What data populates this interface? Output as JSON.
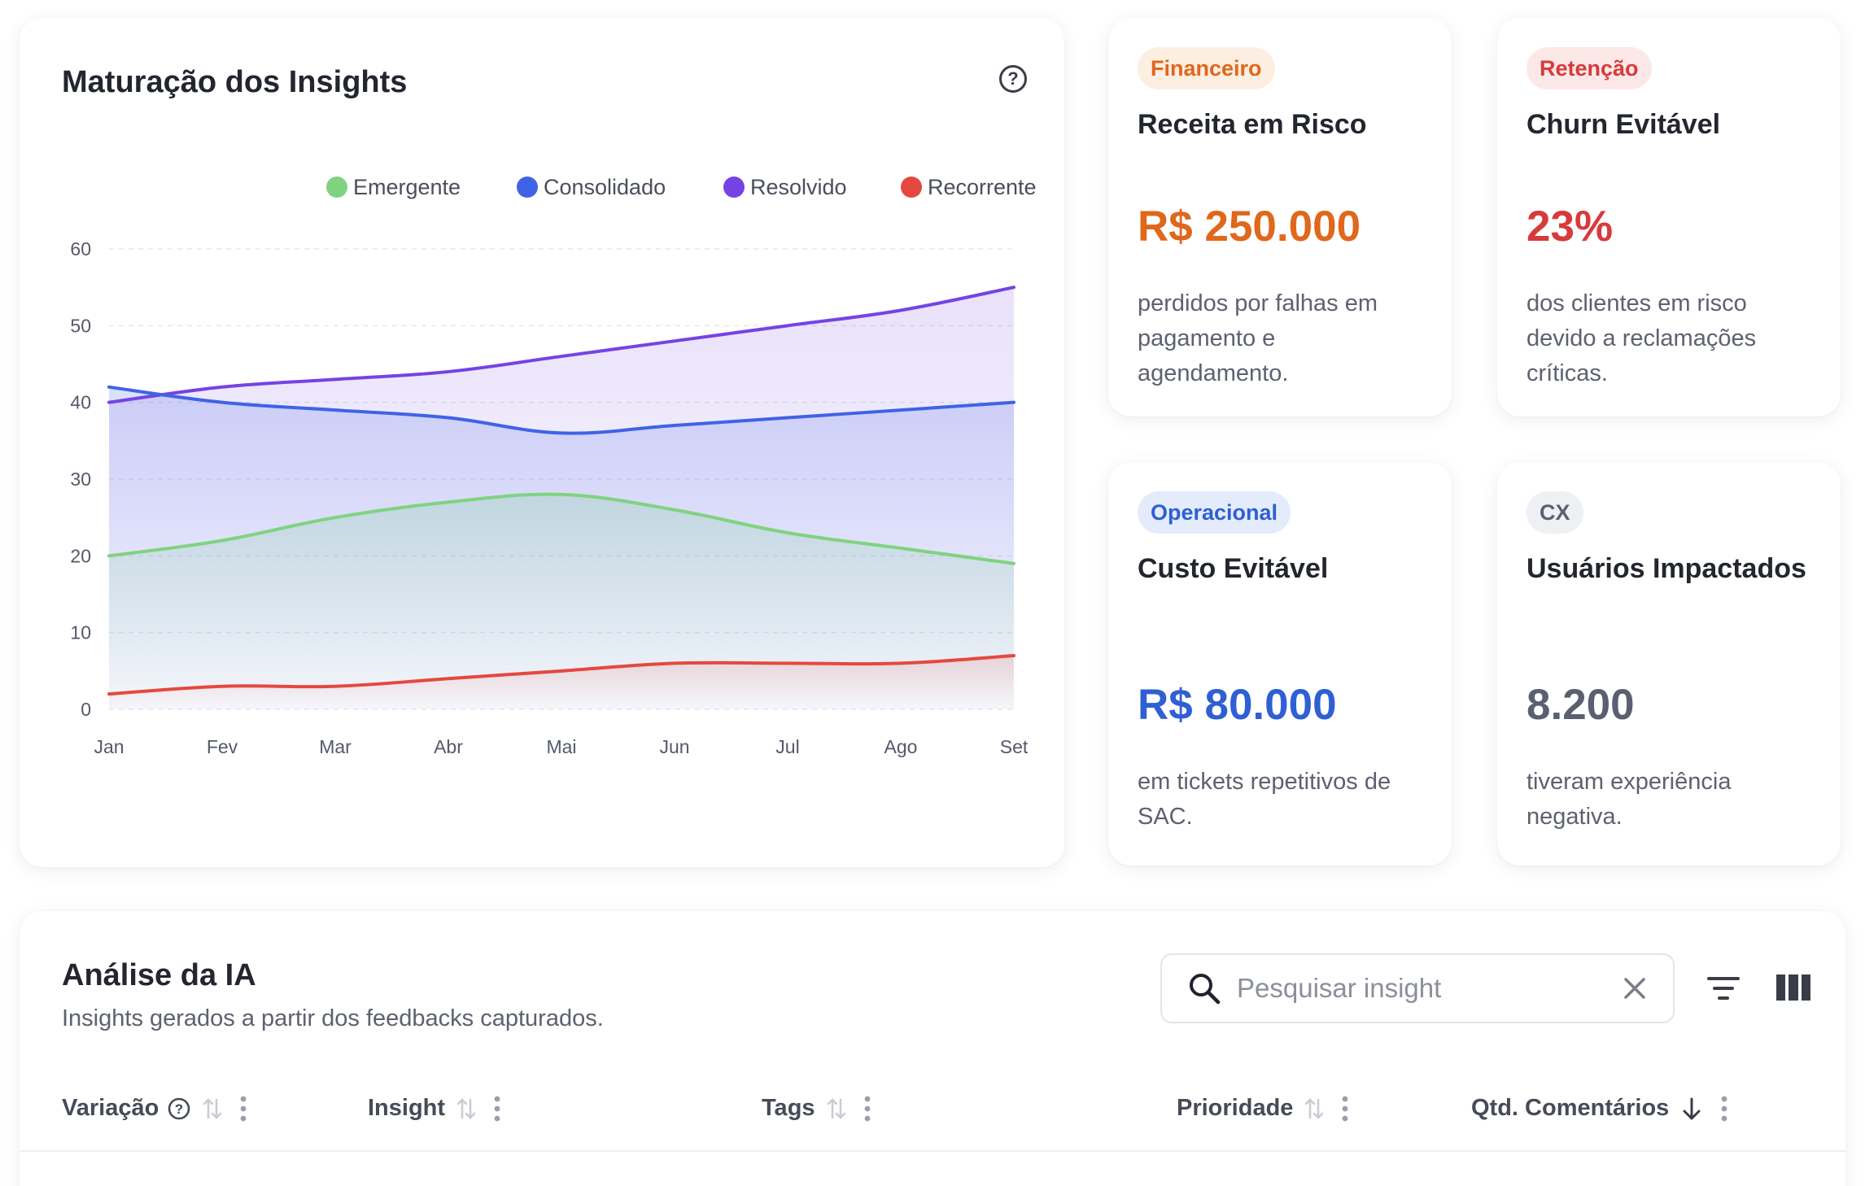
{
  "chart": {
    "title": "Maturação dos Insights",
    "help_icon": "help-circle-icon",
    "help_glyph": "?",
    "legend": [
      {
        "label": "Emergente",
        "color": "#7fd37f"
      },
      {
        "label": "Consolidado",
        "color": "#3f63e6"
      },
      {
        "label": "Resolvido",
        "color": "#7543e3"
      },
      {
        "label": "Recorrente",
        "color": "#e5483f"
      }
    ]
  },
  "chart_data": {
    "type": "area",
    "title": "Maturação dos Insights",
    "x": [
      "Jan",
      "Fev",
      "Mar",
      "Abr",
      "Mai",
      "Jun",
      "Jul",
      "Ago",
      "Set"
    ],
    "yticks": [
      0,
      10,
      20,
      30,
      40,
      50,
      60
    ],
    "ylim": [
      0,
      60
    ],
    "grid": true,
    "legend_position": "top-right",
    "series": [
      {
        "name": "Emergente",
        "color": "#7fd37f",
        "values": [
          20,
          22,
          25,
          27,
          28,
          26,
          23,
          21,
          19
        ]
      },
      {
        "name": "Consolidado",
        "color": "#3f63e6",
        "values": [
          42,
          40,
          39,
          38,
          36,
          37,
          38,
          39,
          40
        ]
      },
      {
        "name": "Resolvido",
        "color": "#7543e3",
        "values": [
          40,
          42,
          43,
          44,
          46,
          48,
          50,
          52,
          55
        ]
      },
      {
        "name": "Recorrente",
        "color": "#e5483f",
        "values": [
          2,
          3,
          3,
          4,
          5,
          6,
          6,
          6,
          7
        ]
      }
    ]
  },
  "cards": {
    "fin": {
      "badge": "Financeiro",
      "title": "Receita em Risco",
      "value": "R$ 250.000",
      "desc": "perdidos por falhas em pagamento e agendamento.",
      "color": "#e0671c"
    },
    "ret": {
      "badge": "Retenção",
      "title": "Churn Evitável",
      "value": "23%",
      "desc": "dos clientes em risco devido a reclamações críticas.",
      "color": "#d83a3a"
    },
    "op": {
      "badge": "Operacional",
      "title": "Custo Evitável",
      "value": "R$ 80.000",
      "desc": "em tickets repetitivos de SAC.",
      "color": "#2f5fd4"
    },
    "cx": {
      "badge": "CX",
      "title": "Usuários Impactados",
      "value": "8.200",
      "desc": "tiveram experiência negativa.",
      "color": "#5a6070"
    }
  },
  "ai": {
    "title": "Análise da IA",
    "subtitle": "Insights gerados a partir dos feedbacks capturados.",
    "search_placeholder": "Pesquisar insight",
    "search_icon": "search-icon",
    "clear_icon": "close-icon",
    "filter_icon": "filter-icon",
    "columns_icon": "columns-icon",
    "columns": [
      {
        "label": "Variação"
      },
      {
        "label": "Insight"
      },
      {
        "label": "Tags"
      },
      {
        "label": "Prioridade"
      },
      {
        "label": "Qtd. Comentários"
      }
    ]
  }
}
